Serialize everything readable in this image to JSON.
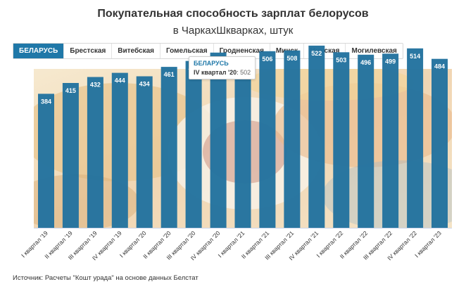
{
  "header": {
    "title": "Покупательная способность зарплат белорусов",
    "subtitle": "в ЧаркахШкварках, штук"
  },
  "tabs": [
    {
      "label": "БЕЛАРУСЬ",
      "active": true
    },
    {
      "label": "Брестская",
      "active": false
    },
    {
      "label": "Витебская",
      "active": false
    },
    {
      "label": "Гомельская",
      "active": false
    },
    {
      "label": "Гродненская",
      "active": false
    },
    {
      "label": "Минск",
      "active": false
    },
    {
      "label": "Минская",
      "active": false
    },
    {
      "label": "Могилевская",
      "active": false
    }
  ],
  "tooltip": {
    "series": "БЕЛАРУСЬ",
    "label": "IV квартал '20",
    "value": "502"
  },
  "source": "Источник: Расчеты \"Кошт урада\" на основе данных Белстат",
  "colors": {
    "bar": "#23739f",
    "active_tab": "#1f78a8"
  },
  "chart_data": {
    "type": "bar",
    "categories": [
      "I квартал '19",
      "II квартал '19",
      "III квартал '19",
      "IV квартал '19",
      "I квартал '20",
      "II квартал '20",
      "III квартал '20",
      "IV квартал '20",
      "I квартал '21",
      "II квартал '21",
      "III квартал '21",
      "IV квартал '21",
      "I квартал '22",
      "II квартал '22",
      "III квартал '22",
      "IV квартал '22",
      "I квартал '23"
    ],
    "series": [
      {
        "name": "БЕЛАРУСЬ",
        "values": [
          384,
          415,
          432,
          444,
          434,
          461,
          478,
          502,
          478,
          506,
          508,
          522,
          503,
          496,
          499,
          514,
          484
        ]
      }
    ],
    "ylim": [
      0,
      560
    ],
    "grid": false,
    "data_labels": true,
    "background": "photo"
  }
}
